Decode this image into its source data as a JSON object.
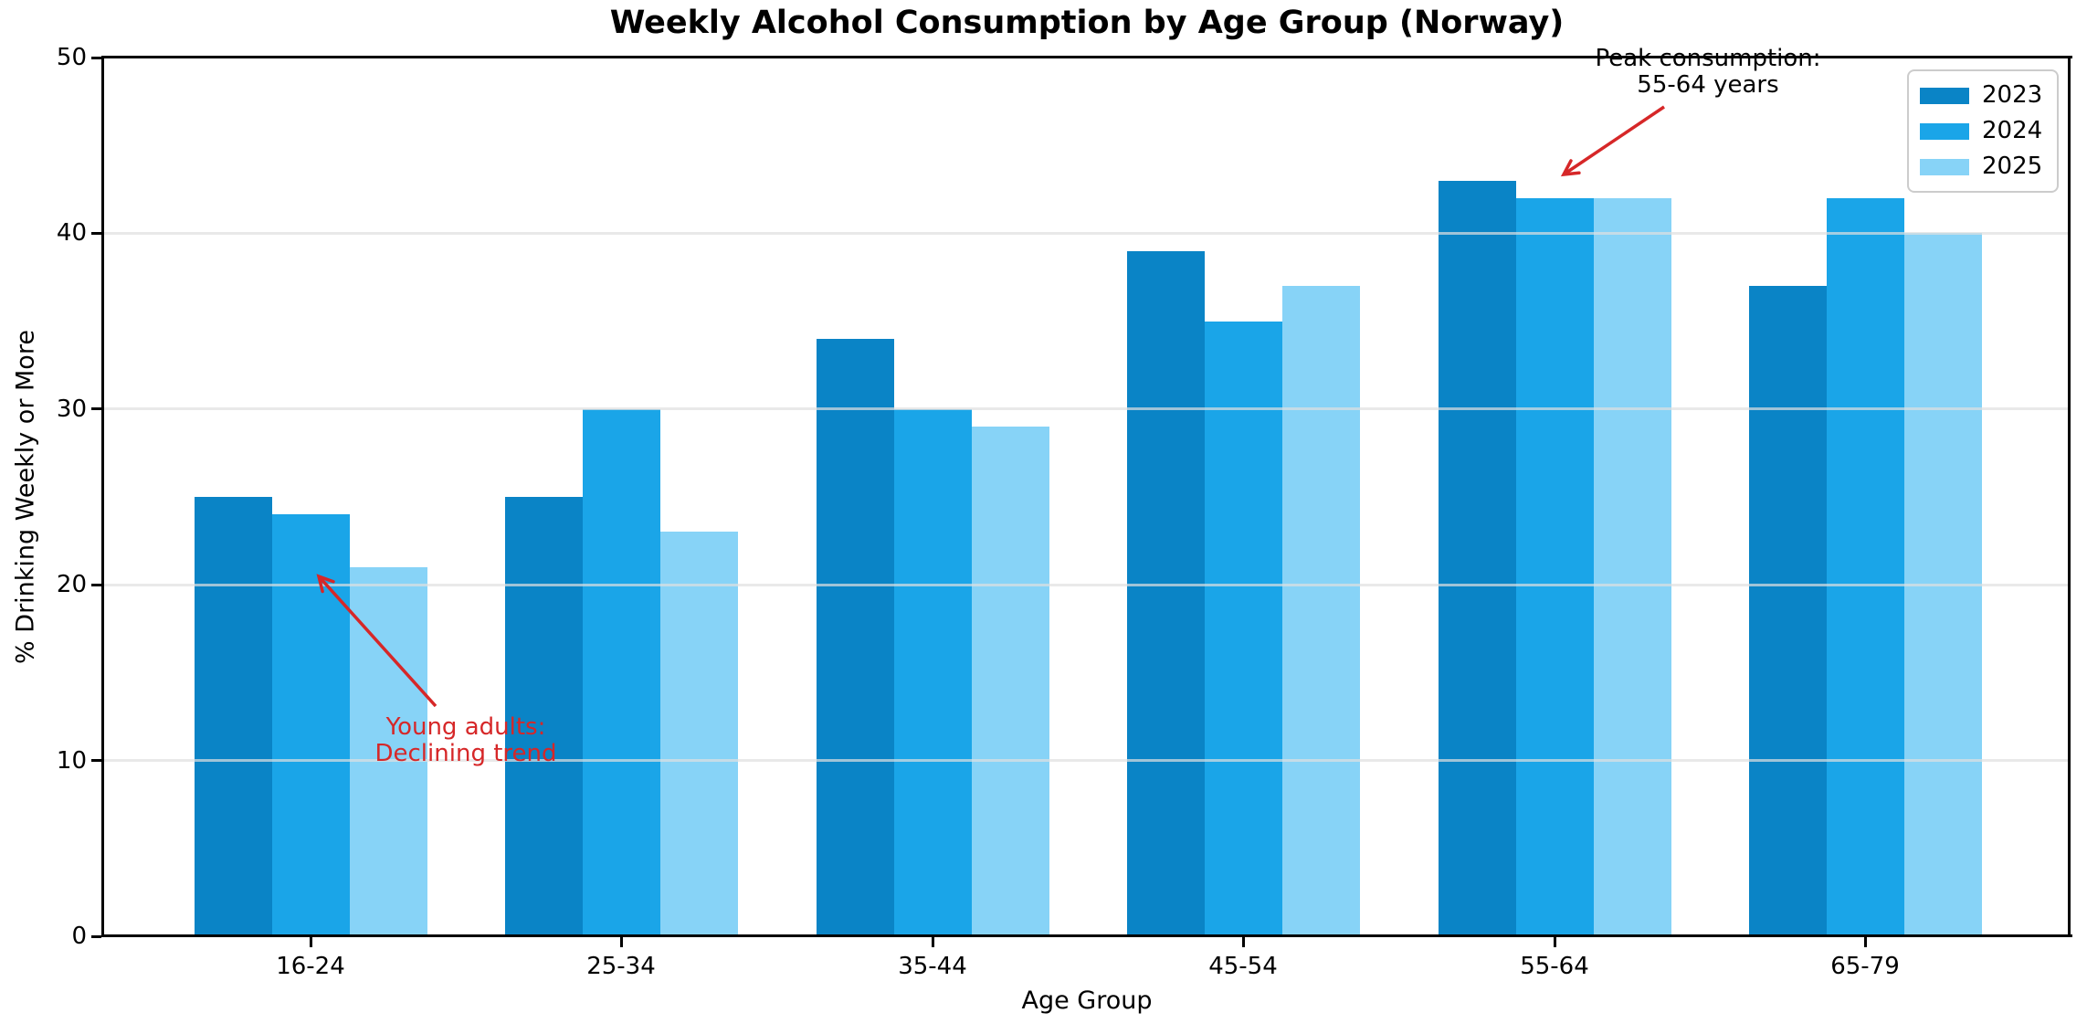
{
  "chart_data": {
    "type": "bar",
    "title": "Weekly Alcohol Consumption by Age Group (Norway)",
    "xlabel": "Age Group",
    "ylabel": "% Drinking Weekly or More",
    "categories": [
      "16-24",
      "25-34",
      "35-44",
      "45-54",
      "55-64",
      "65-79"
    ],
    "series": [
      {
        "name": "2023",
        "color": "#0a84c6",
        "values": [
          25,
          25,
          34,
          39,
          43,
          37
        ]
      },
      {
        "name": "2024",
        "color": "#1aa5e8",
        "values": [
          24,
          30,
          30,
          35,
          42,
          42
        ]
      },
      {
        "name": "2025",
        "color": "#87d3f7",
        "values": [
          21,
          23,
          29,
          37,
          42,
          40
        ]
      }
    ],
    "ylim": [
      0,
      50
    ],
    "yticks": [
      0,
      10,
      20,
      30,
      40,
      50
    ],
    "grid": "horizontal-light",
    "legend": {
      "position": "upper-right"
    },
    "annotations": [
      {
        "id": "young-adults",
        "lines": [
          "Young adults:",
          "Declining trend"
        ],
        "text_color": "#d62728",
        "arrow_color": "#d62728"
      },
      {
        "id": "peak-consumption",
        "lines": [
          "Peak consumption:",
          "55-64 years"
        ],
        "text_color": "#000000",
        "arrow_color": "#d62728"
      }
    ]
  }
}
